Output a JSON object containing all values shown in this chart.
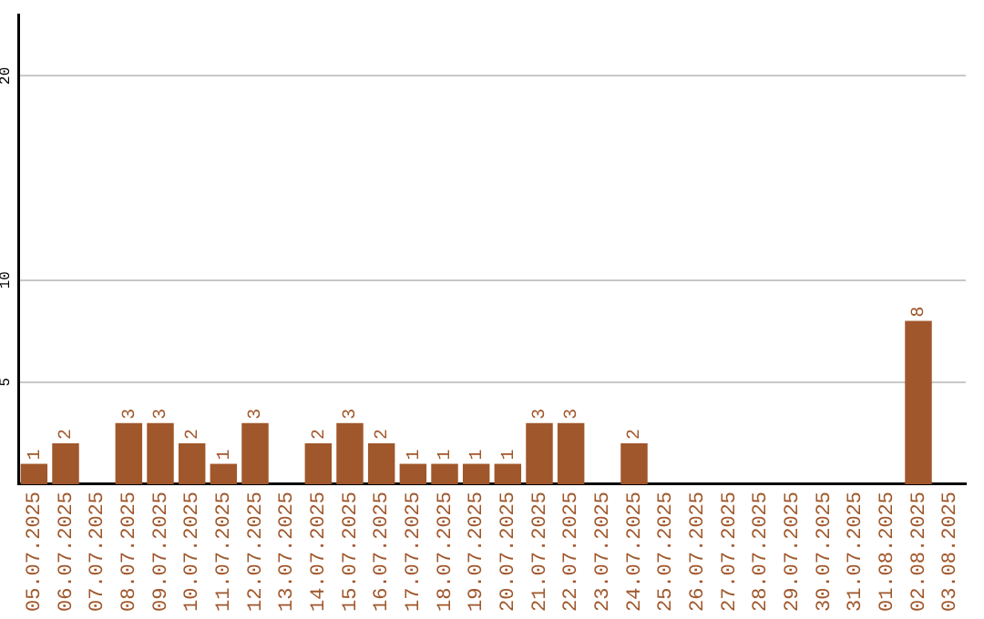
{
  "chart_data": {
    "type": "bar",
    "categories": [
      "05.07.2025",
      "06.07.2025",
      "07.07.2025",
      "08.07.2025",
      "09.07.2025",
      "10.07.2025",
      "11.07.2025",
      "12.07.2025",
      "13.07.2025",
      "14.07.2025",
      "15.07.2025",
      "16.07.2025",
      "17.07.2025",
      "18.07.2025",
      "19.07.2025",
      "20.07.2025",
      "21.07.2025",
      "22.07.2025",
      "23.07.2025",
      "24.07.2025",
      "25.07.2025",
      "26.07.2025",
      "27.07.2025",
      "28.07.2025",
      "29.07.2025",
      "30.07.2025",
      "31.07.2025",
      "01.08.2025",
      "02.08.2025",
      "03.08.2025"
    ],
    "values": [
      1,
      2,
      0,
      3,
      3,
      2,
      1,
      3,
      0,
      2,
      3,
      2,
      1,
      1,
      1,
      1,
      3,
      3,
      0,
      2,
      0,
      0,
      0,
      0,
      0,
      0,
      0,
      0,
      8,
      0
    ],
    "value_labels": [
      "1",
      "2",
      null,
      "3",
      "3",
      "2",
      "1",
      "3",
      null,
      "2",
      "3",
      "2",
      "1",
      "1",
      "1",
      "1",
      "3",
      "3",
      null,
      "2",
      null,
      null,
      null,
      null,
      null,
      null,
      null,
      null,
      "8",
      null
    ],
    "color": "#a0572b",
    "ylim": [
      0,
      23
    ],
    "yticks": [
      5,
      10,
      20
    ],
    "grid": "y"
  }
}
